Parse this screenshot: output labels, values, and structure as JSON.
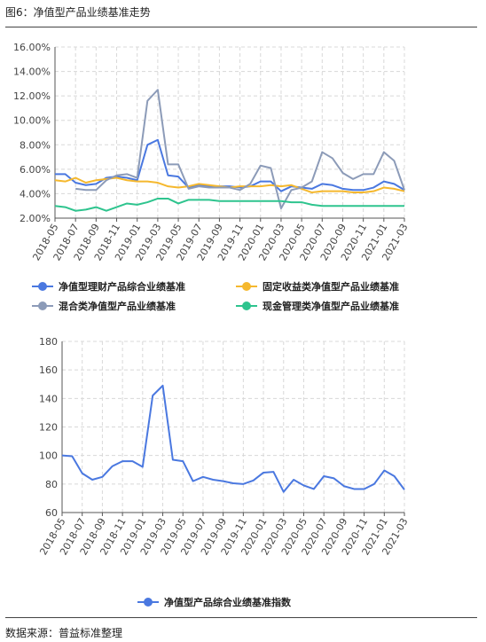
{
  "header": {
    "title": "图6：净值型产品业绩基准走势"
  },
  "footer": {
    "source": "数据来源：普益标准整理"
  },
  "chart_data": [
    {
      "type": "line",
      "title": "",
      "xlabel": "",
      "ylabel": "",
      "ylim": [
        2,
        16
      ],
      "yticks": [
        "2.00%",
        "4.00%",
        "6.00%",
        "8.00%",
        "10.00%",
        "12.00%",
        "14.00%",
        "16.00%"
      ],
      "xtick_labels": [
        "2018-05",
        "2018-07",
        "2018-09",
        "2018-11",
        "2019-01",
        "2019-03",
        "2019-05",
        "2019-07",
        "2019-09",
        "2019-11",
        "2020-01",
        "2020-03",
        "2020-05",
        "2020-07",
        "2020-09",
        "2020-11",
        "2021-01",
        "2021-03"
      ],
      "grid": true,
      "legend_position": "bottom",
      "x": [
        "2018-05",
        "2018-06",
        "2018-07",
        "2018-08",
        "2018-09",
        "2018-10",
        "2018-11",
        "2018-12",
        "2019-01",
        "2019-02",
        "2019-03",
        "2019-04",
        "2019-05",
        "2019-06",
        "2019-07",
        "2019-08",
        "2019-09",
        "2019-10",
        "2019-11",
        "2019-12",
        "2020-01",
        "2020-02",
        "2020-03",
        "2020-04",
        "2020-05",
        "2020-06",
        "2020-07",
        "2020-08",
        "2020-09",
        "2020-10",
        "2020-11",
        "2020-12",
        "2021-01",
        "2021-02",
        "2021-03"
      ],
      "series": [
        {
          "name": "净值型理财产品综合业绩基准",
          "color": "#4a78e0",
          "values": [
            5.6,
            5.6,
            4.9,
            4.7,
            4.8,
            5.3,
            5.4,
            5.3,
            5.1,
            8.0,
            8.4,
            5.5,
            5.4,
            4.5,
            4.7,
            4.6,
            4.6,
            4.6,
            4.5,
            4.6,
            5.0,
            5.0,
            4.2,
            4.6,
            4.5,
            4.4,
            4.8,
            4.7,
            4.4,
            4.3,
            4.3,
            4.5,
            5.0,
            4.8,
            4.3
          ]
        },
        {
          "name": "固定收益类净值型产品业绩基准",
          "color": "#f5b82e",
          "values": [
            5.1,
            5.0,
            5.3,
            4.9,
            5.1,
            5.2,
            5.3,
            5.1,
            5.0,
            5.0,
            4.9,
            4.6,
            4.5,
            4.6,
            4.8,
            4.7,
            4.6,
            4.5,
            4.6,
            4.6,
            4.6,
            4.7,
            4.6,
            4.7,
            4.4,
            4.1,
            4.2,
            4.2,
            4.2,
            4.1,
            4.1,
            4.2,
            4.5,
            4.4,
            4.2
          ]
        },
        {
          "name": "混合类净值型产品业绩基准",
          "color": "#8c9bb8",
          "values": [
            null,
            null,
            4.4,
            4.3,
            4.3,
            5.1,
            5.5,
            5.6,
            5.3,
            11.6,
            12.5,
            6.4,
            6.4,
            4.4,
            4.6,
            4.5,
            4.5,
            4.5,
            4.3,
            4.8,
            6.3,
            6.1,
            2.8,
            4.3,
            4.5,
            5.0,
            7.4,
            6.9,
            5.7,
            5.2,
            5.6,
            5.6,
            7.4,
            6.7,
            4.3
          ]
        },
        {
          "name": "现金管理类净值型产品业绩基准",
          "color": "#2ec48e",
          "values": [
            3.0,
            2.9,
            2.6,
            2.7,
            2.9,
            2.6,
            2.9,
            3.2,
            3.1,
            3.3,
            3.6,
            3.6,
            3.2,
            3.5,
            3.5,
            3.5,
            3.4,
            3.4,
            3.4,
            3.4,
            3.4,
            3.4,
            3.4,
            3.3,
            3.3,
            3.1,
            3.0,
            3.0,
            3.0,
            3.0,
            3.0,
            3.0,
            3.0,
            3.0,
            3.0
          ]
        }
      ]
    },
    {
      "type": "line",
      "title": "",
      "xlabel": "",
      "ylabel": "",
      "ylim": [
        60,
        180
      ],
      "yticks": [
        "60",
        "80",
        "100",
        "120",
        "140",
        "160",
        "180"
      ],
      "xtick_labels": [
        "2018-05",
        "2018-07",
        "2018-09",
        "2018-11",
        "2019-01",
        "2019-03",
        "2019-05",
        "2019-07",
        "2019-09",
        "2019-11",
        "2020-01",
        "2020-03",
        "2020-05",
        "2020-07",
        "2020-09",
        "2020-11",
        "2021-01",
        "2021-03"
      ],
      "grid": true,
      "legend_position": "bottom",
      "x": [
        "2018-05",
        "2018-06",
        "2018-07",
        "2018-08",
        "2018-09",
        "2018-10",
        "2018-11",
        "2018-12",
        "2019-01",
        "2019-02",
        "2019-03",
        "2019-04",
        "2019-05",
        "2019-06",
        "2019-07",
        "2019-08",
        "2019-09",
        "2019-10",
        "2019-11",
        "2019-12",
        "2020-01",
        "2020-02",
        "2020-03",
        "2020-04",
        "2020-05",
        "2020-06",
        "2020-07",
        "2020-08",
        "2020-09",
        "2020-10",
        "2020-11",
        "2020-12",
        "2021-01",
        "2021-02",
        "2021-03"
      ],
      "series": [
        {
          "name": "净值型产品综合业绩基准指数",
          "color": "#4a78e0",
          "values": [
            100,
            99.5,
            87.5,
            83,
            85,
            92.5,
            96,
            96,
            92,
            142,
            149,
            97,
            96,
            82,
            85,
            83,
            82,
            80.5,
            80,
            82.5,
            88,
            88.5,
            74.5,
            83,
            79,
            76.5,
            85.5,
            84,
            78.5,
            76.5,
            76.5,
            80,
            89.5,
            85.5,
            76
          ]
        }
      ]
    }
  ]
}
